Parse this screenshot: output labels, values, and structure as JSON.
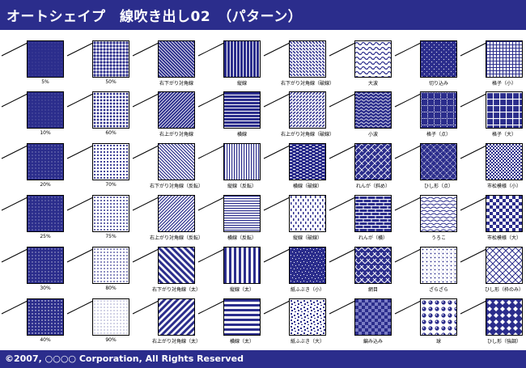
{
  "title": "オートシェイプ　線吹き出し02　（パターン）",
  "copyright": "©2007, ○○○○ Corporation, All Rights Reserved",
  "colors": {
    "header": "#2b2d8c",
    "pattern_fg": "#2b2d8c",
    "pattern_bg": "#ffffff"
  },
  "columns": [
    [
      "5%",
      "10%",
      "20%",
      "25%",
      "30%",
      "40%"
    ],
    [
      "50%",
      "60%",
      "70%",
      "75%",
      "80%",
      "90%"
    ],
    [
      "右下がり対角線",
      "右上がり対角線",
      "右下がり対角線（反転）",
      "右上がり対角線（反転）",
      "右下がり対角線（太）",
      "右上がり対角線（太）"
    ],
    [
      "縦線",
      "横線",
      "縦線（反転）",
      "横線（反転）",
      "縦線（太）",
      "横線（太）"
    ],
    [
      "右下がり対角線（破線）",
      "右上がり対角線（破線）",
      "横線（破線）",
      "縦線（破線）",
      "紙ふぶき（小）",
      "紙ふぶき（大）"
    ],
    [
      "大波",
      "小波",
      "れんが（斜め）",
      "れんが（横）",
      "網目",
      "編み込み"
    ],
    [
      "切り込み",
      "格子（点）",
      "ひし形（点）",
      "うろこ",
      "ざらざら",
      "球"
    ],
    [
      "格子（小）",
      "格子（大）",
      "市松模様（小）",
      "市松模様（大）",
      "ひし形（枠のみ）",
      "ひし形（強調）"
    ]
  ],
  "patterns": [
    [
      "dots-5",
      "dots-10",
      "dots-20",
      "dots-25",
      "dots-30",
      "dots-40"
    ],
    [
      "dots-50",
      "dots-60",
      "dots-70",
      "dots-75",
      "dots-80",
      "dots-90"
    ],
    [
      "diag-down-thin",
      "diag-up-thin",
      "diag-down-inverted",
      "diag-up-inverted",
      "diag-down-wide",
      "diag-up-wide"
    ],
    [
      "vertical-thin",
      "horizontal-thin",
      "vertical-inverted",
      "horizontal-inverted",
      "vertical-wide",
      "horizontal-wide"
    ],
    [
      "dash-down",
      "dash-up",
      "dash-horizontal",
      "dash-vertical",
      "confetti-small",
      "confetti-large"
    ],
    [
      "wave-large",
      "wave-small",
      "brick-diagonal",
      "brick-horizontal",
      "weave",
      "plaid"
    ],
    [
      "divot",
      "dotted-grid",
      "dotted-diamond",
      "shingle",
      "sphere-ish",
      "sphere"
    ],
    [
      "grid-small",
      "grid-large",
      "checker-small",
      "checker-large",
      "diamond-outline",
      "diamond-solid"
    ]
  ]
}
